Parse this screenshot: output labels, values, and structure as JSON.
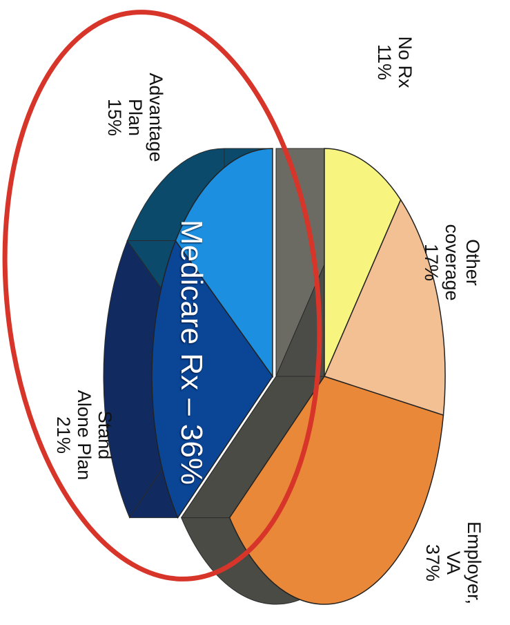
{
  "chart_data": {
    "type": "pie",
    "title": "",
    "unit": "%",
    "slices": [
      {
        "label_lines": [
          "No Rx",
          "11%"
        ],
        "value": 11,
        "color": "#f7f47f",
        "side": "#6b6b63"
      },
      {
        "label_lines": [
          "Other",
          "coverage",
          "17%"
        ],
        "value": 17,
        "color": "#f3c093",
        "side": "#4b4b47"
      },
      {
        "label_lines": [
          "Employer,",
          "VA",
          "37%"
        ],
        "value": 37,
        "color": "#e98838",
        "side": "#4b4b45"
      },
      {
        "label_lines": [
          "Stand",
          "Alone Plan",
          "21%"
        ],
        "value": 21,
        "color": "#0a4596",
        "side": "#112b60"
      },
      {
        "label_lines": [
          "Advantage",
          "Plan",
          "15%"
        ],
        "value": 15,
        "color": "#1d8fe0",
        "side": "#0b4a6a"
      }
    ],
    "group_annotation": "Medicare Rx – 36%",
    "highlight_color": "#d8352a"
  }
}
